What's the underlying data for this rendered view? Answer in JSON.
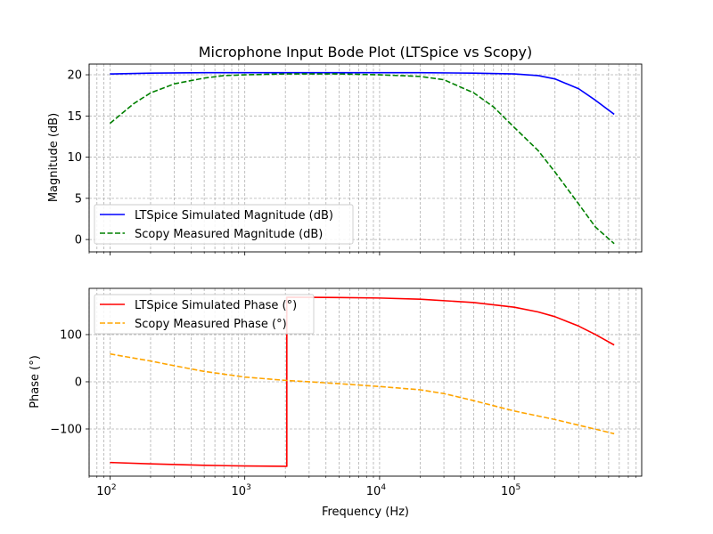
{
  "chart_data": [
    {
      "type": "line",
      "title": "Microphone Input Bode Plot (LTSpice vs Scopy)",
      "xlabel": "",
      "ylabel": "Magnitude (dB)",
      "xscale": "log",
      "xlim": [
        70,
        880000
      ],
      "ylim": [
        -1.5,
        21.3
      ],
      "xticks": [
        {
          "v": 100,
          "mant": "10",
          "exp": "2"
        },
        {
          "v": 1000,
          "mant": "10",
          "exp": "3"
        },
        {
          "v": 10000,
          "mant": "10",
          "exp": "4"
        },
        {
          "v": 100000,
          "mant": "10",
          "exp": "5"
        }
      ],
      "yticks": [
        0,
        5,
        10,
        15,
        20
      ],
      "grid": "major and minor",
      "legend": "lower left",
      "series": [
        {
          "name": "LTSpice Simulated Magnitude (dB)",
          "color": "#0000ff",
          "style": "solid",
          "x": [
            100,
            200,
            500,
            1000,
            2000,
            5000,
            10000,
            20000,
            50000,
            100000,
            150000,
            200000,
            300000,
            400000,
            550000
          ],
          "y": [
            20.1,
            20.2,
            20.25,
            20.25,
            20.25,
            20.25,
            20.25,
            20.25,
            20.2,
            20.1,
            19.9,
            19.5,
            18.3,
            16.9,
            15.2
          ]
        },
        {
          "name": "Scopy Measured Magnitude (dB)",
          "color": "#008000",
          "style": "dashed",
          "x": [
            100,
            150,
            200,
            300,
            500,
            700,
            1000,
            2000,
            5000,
            10000,
            20000,
            30000,
            50000,
            70000,
            100000,
            150000,
            200000,
            300000,
            400000,
            550000
          ],
          "y": [
            14.1,
            16.5,
            17.8,
            18.9,
            19.6,
            19.9,
            20.0,
            20.1,
            20.1,
            20.0,
            19.8,
            19.4,
            17.8,
            16.1,
            13.6,
            10.8,
            8.2,
            4.3,
            1.5,
            -0.5
          ]
        }
      ]
    },
    {
      "type": "line",
      "title": "",
      "xlabel": "Frequency (Hz)",
      "ylabel": "Phase (°)",
      "xscale": "log",
      "xlim": [
        70,
        880000
      ],
      "ylim": [
        -200,
        198
      ],
      "xticks": [
        {
          "v": 100,
          "mant": "10",
          "exp": "2"
        },
        {
          "v": 1000,
          "mant": "10",
          "exp": "3"
        },
        {
          "v": 10000,
          "mant": "10",
          "exp": "4"
        },
        {
          "v": 100000,
          "mant": "10",
          "exp": "5"
        }
      ],
      "yticks": [
        {
          "v": -100,
          "label": "−100"
        },
        {
          "v": 0,
          "label": "0"
        },
        {
          "v": 100,
          "label": "100"
        }
      ],
      "grid": "major and minor",
      "legend": "upper left",
      "series": [
        {
          "name": "LTSpice Simulated Phase (°)",
          "color": "#ff0000",
          "style": "solid",
          "x": [
            100,
            200,
            500,
            1000,
            2000,
            2050,
            2050,
            3000,
            5000,
            10000,
            20000,
            50000,
            100000,
            150000,
            200000,
            300000,
            400000,
            550000
          ],
          "y": [
            -171,
            -174,
            -177,
            -178.5,
            -179.2,
            -179.2,
            179.2,
            179,
            178.5,
            177.5,
            175,
            168,
            158,
            148,
            138,
            118,
            100,
            78
          ]
        },
        {
          "name": "Scopy Measured Phase (°)",
          "color": "#ffa500",
          "style": "dashed",
          "x": [
            100,
            200,
            300,
            500,
            1000,
            2000,
            3000,
            5000,
            10000,
            20000,
            30000,
            50000,
            100000,
            200000,
            300000,
            550000
          ],
          "y": [
            59,
            44,
            34,
            22,
            10,
            3,
            0,
            -4,
            -10,
            -17,
            -25,
            -40,
            -62,
            -80,
            -92,
            -110
          ]
        }
      ]
    }
  ]
}
